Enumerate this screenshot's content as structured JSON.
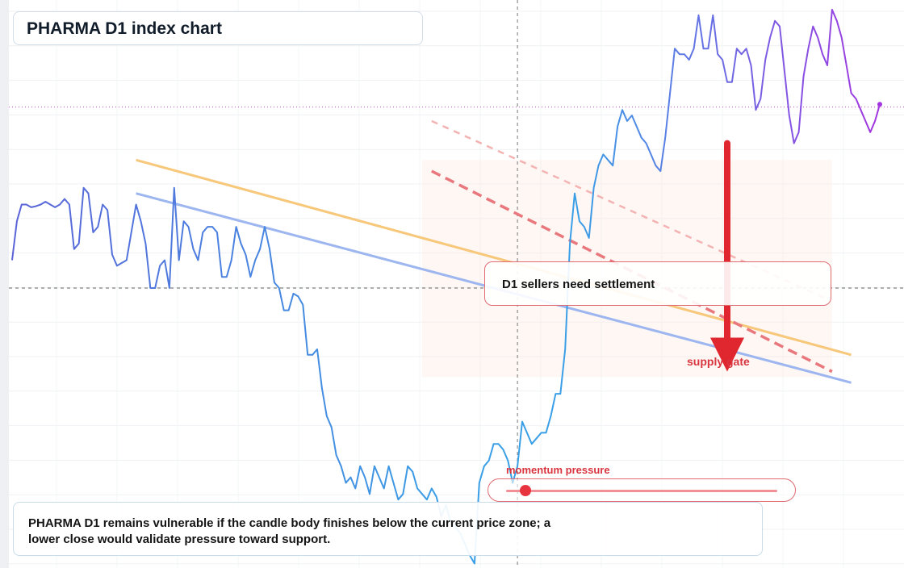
{
  "title": "PHARMA D1 index chart",
  "annotations": {
    "callout": "D1 sellers need settlement",
    "supply_label": "supply gate",
    "momentum_label": "momentum pressure",
    "momentum_level": 0.07,
    "note": "PHARMA D1 remains vulnerable if the candle body finishes below the current price zone; a lower close would validate pressure toward support."
  },
  "colors": {
    "price_start": "#5b63d8",
    "price_mid": "#3a9fe6",
    "price_end": "#a335e0",
    "trend_orange": "#f7c77a",
    "trend_blue": "#9db6f0",
    "dashed_red": "#e8787d",
    "dashed_pink": "#f4b3b3",
    "arrow": "#e0262e",
    "reference_line": "#b84ab8"
  },
  "chart_data": {
    "type": "line",
    "title": "PHARMA D1 index chart",
    "xlabel": "",
    "ylabel": "",
    "grid": true,
    "xlim": [
      0,
      182
    ],
    "ylim": [
      0,
      100
    ],
    "series": [
      {
        "values": [
          55,
          62,
          65,
          65,
          64.5,
          64.7,
          65,
          65.5,
          65,
          64.5,
          65,
          66,
          65,
          57,
          58,
          68,
          67,
          60,
          61,
          65,
          64,
          56,
          54,
          54.5,
          55,
          60,
          65,
          62,
          58,
          50,
          50,
          54,
          55,
          50,
          68,
          55,
          62,
          61,
          57,
          55,
          60,
          61,
          61,
          60,
          52,
          52,
          55,
          61,
          58,
          56,
          52,
          55,
          57,
          61,
          57,
          51,
          50,
          46,
          46,
          49,
          48.5,
          47,
          38,
          38,
          39,
          32,
          27,
          25,
          20,
          18,
          15,
          16,
          14,
          18,
          16,
          13,
          18,
          16,
          14,
          18,
          15,
          12,
          13,
          18,
          17,
          14,
          13,
          12,
          14,
          12.5,
          9,
          11,
          8,
          7,
          6,
          4,
          2,
          0.5,
          15,
          18,
          19,
          22,
          22,
          21,
          19,
          15,
          18,
          26,
          24,
          22,
          23,
          24,
          24,
          27,
          31,
          31,
          39,
          58,
          67,
          62,
          61,
          59,
          68,
          72,
          74,
          73,
          72,
          79,
          82,
          80,
          81,
          79,
          77,
          76,
          74,
          72,
          71,
          77,
          85,
          93,
          92,
          92,
          91,
          93,
          99,
          93,
          93,
          99,
          92,
          91,
          87,
          87,
          93,
          92,
          93,
          90,
          82,
          84,
          91,
          95,
          98,
          97,
          89,
          81,
          76,
          78,
          88,
          93,
          97,
          95,
          92,
          90,
          100,
          98,
          95,
          90,
          85,
          84,
          82,
          80,
          78,
          80,
          83
        ]
      }
    ],
    "reference_y": 82.5,
    "crosshair": {
      "x": 106,
      "y": 50
    },
    "trend_lines": [
      {
        "style": "solid",
        "color": "orange",
        "from": [
          26,
          73
        ],
        "to": [
          176,
          38
        ]
      },
      {
        "style": "solid",
        "color": "blue",
        "from": [
          26,
          67
        ],
        "to": [
          176,
          33
        ]
      },
      {
        "style": "dashed",
        "color": "red",
        "from": [
          88,
          71
        ],
        "to": [
          172,
          35
        ]
      },
      {
        "style": "dashed",
        "color": "pink",
        "from": [
          88,
          80
        ],
        "to": [
          171,
          48
        ]
      }
    ],
    "arrow": {
      "x": 150,
      "from_y": 76,
      "to_y": 35
    },
    "zone": {
      "x": [
        86,
        172
      ],
      "y": [
        34,
        73
      ]
    }
  }
}
